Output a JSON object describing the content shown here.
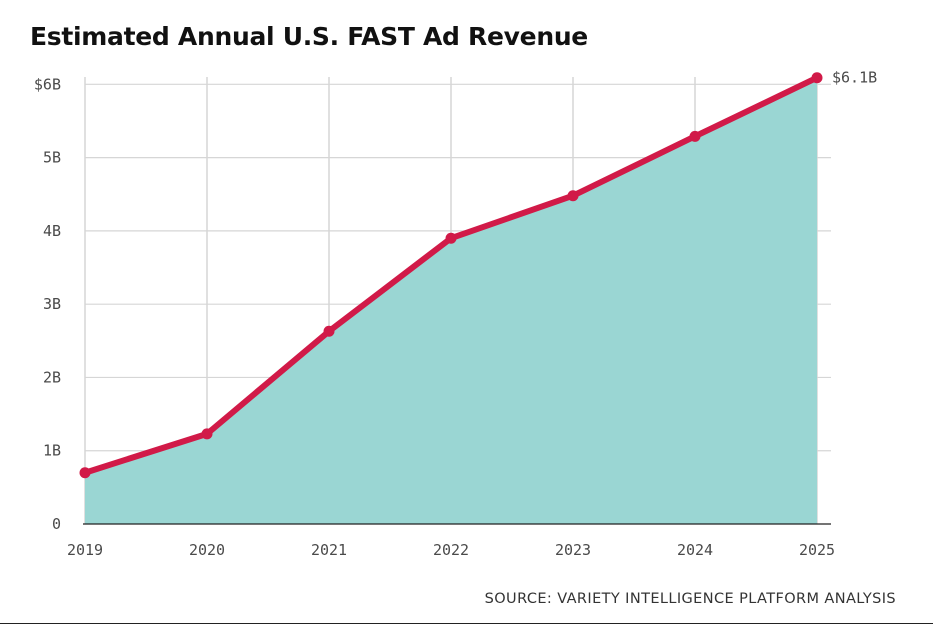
{
  "title": "Estimated Annual U.S. FAST Ad Revenue",
  "source": "SOURCE: VARIETY INTELLIGENCE PLATFORM ANALYSIS",
  "end_label": "$6.1B",
  "colors": {
    "line": "#d11a48",
    "area": "#9ad6d3",
    "grid": "#d6d6d6",
    "axis": "#222222"
  },
  "chart_data": {
    "type": "area",
    "title": "Estimated Annual U.S. FAST Ad Revenue",
    "xlabel": "",
    "ylabel": "",
    "x": [
      2019,
      2020,
      2021,
      2022,
      2023,
      2024,
      2025
    ],
    "xticks": [
      "2019",
      "2020",
      "2021",
      "2022",
      "2023",
      "2024",
      "2025"
    ],
    "series": [
      {
        "values": [
          0.7,
          1.23,
          2.63,
          3.9,
          4.48,
          5.29,
          6.09
        ]
      }
    ],
    "yticks": [
      {
        "value": 0,
        "label": "0"
      },
      {
        "value": 1,
        "label": "1B"
      },
      {
        "value": 2,
        "label": "2B"
      },
      {
        "value": 3,
        "label": "3B"
      },
      {
        "value": 4,
        "label": "4B"
      },
      {
        "value": 5,
        "label": "5B"
      },
      {
        "value": 6,
        "label": "$6B"
      }
    ],
    "ylim": [
      0,
      6.1
    ],
    "grid": true,
    "legend": "none"
  }
}
